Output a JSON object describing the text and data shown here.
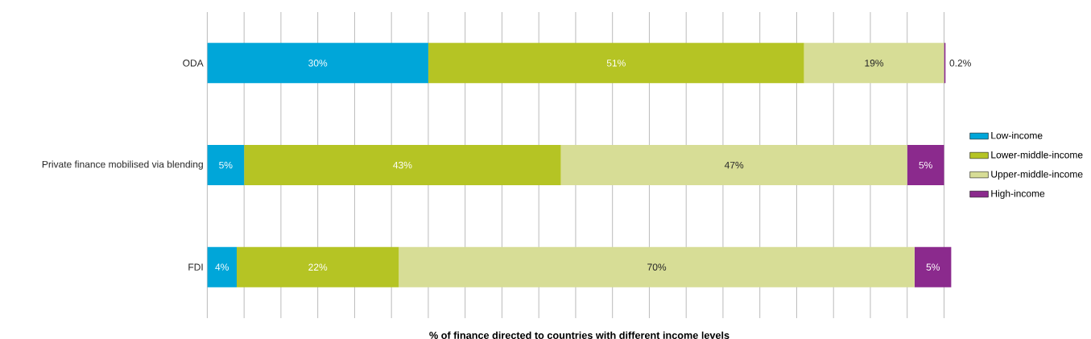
{
  "chart_data": {
    "type": "bar",
    "orientation": "horizontal",
    "stacked": true,
    "categories": [
      "ODA",
      "Private finance mobilised via blending",
      "FDI"
    ],
    "xlabel": "% of finance directed to countries with different income levels",
    "tick_labels": "y",
    "grid": "x",
    "legend": "right",
    "series": [
      {
        "name": "Low-income",
        "color": "#00a6d9",
        "values": [
          30,
          5,
          4
        ],
        "value_labels": [
          "30%",
          "5%",
          "4%"
        ]
      },
      {
        "name": "Lower-middle-income",
        "color": "#b5c424",
        "values": [
          51,
          43,
          22
        ],
        "value_labels": [
          "51%",
          "43%",
          "22%"
        ]
      },
      {
        "name": "Upper-middle-income",
        "color": "#d7dd96",
        "values": [
          19,
          47,
          70
        ],
        "value_labels": [
          "19%",
          "47%",
          "70%"
        ]
      },
      {
        "name": "High-income",
        "color": "#8b2a8d",
        "values": [
          0.2,
          5,
          5
        ],
        "value_labels": [
          "0.2%",
          "5%",
          "5%"
        ]
      }
    ]
  }
}
